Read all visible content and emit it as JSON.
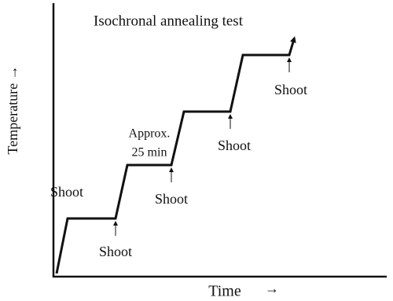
{
  "title": "Isochronal annealing test",
  "axes": {
    "y_label": "Temperature →",
    "x_label": "Time",
    "x_arrow": "→"
  },
  "shots": [
    {
      "label": "Shoot"
    },
    {
      "label": "Shoot"
    },
    {
      "label": "Shoot"
    },
    {
      "label": "Shoot"
    },
    {
      "label": "Shoot"
    }
  ],
  "duration": {
    "line1": "Approx.",
    "line2": "25 min"
  }
}
